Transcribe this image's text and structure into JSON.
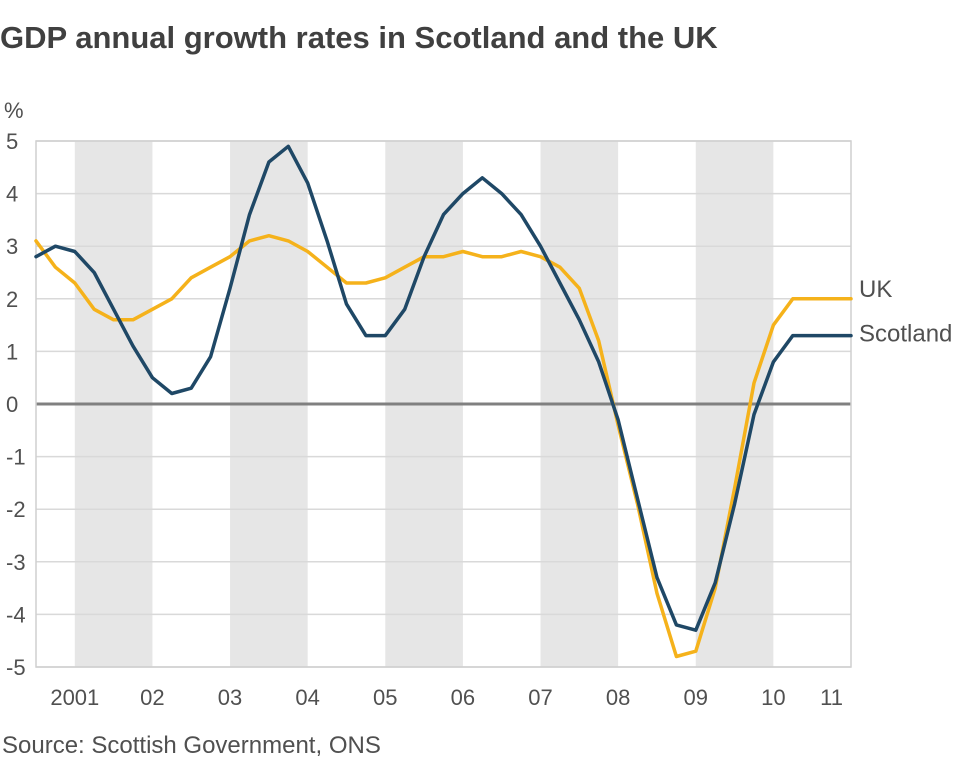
{
  "title": "GDP annual growth rates in Scotland and the UK",
  "source": "Source: Scottish Government, ONS",
  "chart_data": {
    "type": "line",
    "title": "GDP annual growth rates in Scotland and the UK",
    "ylabel": "%",
    "xlabel": "",
    "ylim": [
      -5,
      5
    ],
    "yticks": [
      5,
      4,
      3,
      2,
      1,
      0,
      -1,
      -2,
      -3,
      -4,
      -5
    ],
    "x_range": [
      2001.0,
      2011.5
    ],
    "x_tick_labels": [
      {
        "x": 2001.5,
        "label": "2001"
      },
      {
        "x": 2002.5,
        "label": "02"
      },
      {
        "x": 2003.5,
        "label": "03"
      },
      {
        "x": 2004.5,
        "label": "04"
      },
      {
        "x": 2005.5,
        "label": "05"
      },
      {
        "x": 2006.5,
        "label": "06"
      },
      {
        "x": 2007.5,
        "label": "07"
      },
      {
        "x": 2008.5,
        "label": "08"
      },
      {
        "x": 2009.5,
        "label": "09"
      },
      {
        "x": 2010.5,
        "label": "10"
      },
      {
        "x": 2011.25,
        "label": "11"
      }
    ],
    "shaded_years": [
      [
        2001.5,
        2002.5
      ],
      [
        2003.5,
        2004.5
      ],
      [
        2005.5,
        2006.5
      ],
      [
        2007.5,
        2008.5
      ],
      [
        2009.5,
        2010.5
      ]
    ],
    "grid": true,
    "colors": {
      "UK": "#f5b21b",
      "Scotland": "#1f4866",
      "zero_line": "#808080",
      "grid": "#d9d9d9",
      "shade": "#e6e6e6"
    },
    "series": [
      {
        "name": "UK",
        "x": [
          2001.0,
          2001.25,
          2001.5,
          2001.75,
          2002.0,
          2002.25,
          2002.5,
          2002.75,
          2003.0,
          2003.25,
          2003.5,
          2003.75,
          2004.0,
          2004.25,
          2004.5,
          2004.75,
          2005.0,
          2005.25,
          2005.5,
          2005.75,
          2006.0,
          2006.25,
          2006.5,
          2006.75,
          2007.0,
          2007.25,
          2007.5,
          2007.75,
          2008.0,
          2008.25,
          2008.5,
          2008.75,
          2009.0,
          2009.25,
          2009.5,
          2009.75,
          2010.0,
          2010.25,
          2010.5,
          2010.75,
          2011.0,
          2011.25,
          2011.5
        ],
        "values": [
          3.1,
          2.6,
          2.3,
          1.8,
          1.6,
          1.6,
          1.8,
          2.0,
          2.4,
          2.6,
          2.8,
          3.1,
          3.2,
          3.1,
          2.9,
          2.6,
          2.3,
          2.3,
          2.4,
          2.6,
          2.8,
          2.8,
          2.9,
          2.8,
          2.8,
          2.9,
          2.8,
          2.6,
          2.2,
          1.2,
          -0.4,
          -1.9,
          -3.6,
          -4.8,
          -4.7,
          -3.5,
          -1.6,
          0.4,
          1.5,
          2.0,
          2.0,
          2.0,
          2.0
        ]
      },
      {
        "name": "Scotland",
        "x": [
          2001.0,
          2001.25,
          2001.5,
          2001.75,
          2002.0,
          2002.25,
          2002.5,
          2002.75,
          2003.0,
          2003.25,
          2003.5,
          2003.75,
          2004.0,
          2004.25,
          2004.5,
          2004.75,
          2005.0,
          2005.25,
          2005.5,
          2005.75,
          2006.0,
          2006.25,
          2006.5,
          2006.75,
          2007.0,
          2007.25,
          2007.5,
          2007.75,
          2008.0,
          2008.25,
          2008.5,
          2008.75,
          2009.0,
          2009.25,
          2009.5,
          2009.75,
          2010.0,
          2010.25,
          2010.5,
          2010.75,
          2011.0,
          2011.25,
          2011.5
        ],
        "values": [
          2.8,
          3.0,
          2.9,
          2.5,
          1.8,
          1.1,
          0.5,
          0.2,
          0.3,
          0.9,
          2.2,
          3.6,
          4.6,
          4.9,
          4.2,
          3.1,
          1.9,
          1.3,
          1.3,
          1.8,
          2.8,
          3.6,
          4.0,
          4.3,
          4.0,
          3.6,
          3.0,
          2.3,
          1.6,
          0.8,
          -0.3,
          -1.8,
          -3.3,
          -4.2,
          -4.3,
          -3.4,
          -1.9,
          -0.2,
          0.8,
          1.3,
          1.3,
          1.3,
          1.3
        ]
      }
    ]
  }
}
